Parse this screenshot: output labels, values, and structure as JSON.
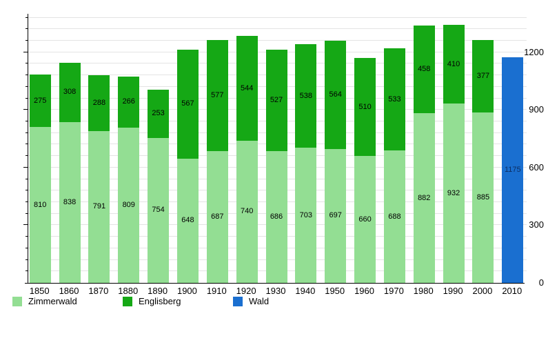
{
  "chart_data": {
    "type": "bar",
    "stacked": true,
    "title": "",
    "xlabel": "",
    "ylabel": "",
    "categories": [
      "1850",
      "1860",
      "1870",
      "1880",
      "1890",
      "1900",
      "1910",
      "1920",
      "1930",
      "1940",
      "1950",
      "1960",
      "1970",
      "1980",
      "1990",
      "2000",
      "2010"
    ],
    "series": [
      {
        "name": "Zimmerwald",
        "color": "#93de93",
        "label_color": "#000000",
        "values": [
          810,
          838,
          791,
          809,
          754,
          648,
          687,
          740,
          686,
          703,
          697,
          660,
          688,
          882,
          932,
          885,
          null
        ]
      },
      {
        "name": "Englisberg",
        "color": "#15a815",
        "label_color": "#000000",
        "values": [
          275,
          308,
          288,
          266,
          253,
          567,
          577,
          544,
          527,
          538,
          564,
          510,
          533,
          458,
          410,
          377,
          null
        ]
      },
      {
        "name": "Wald",
        "color": "#1a6fd0",
        "label_color": "#0c2d62",
        "values": [
          null,
          null,
          null,
          null,
          null,
          null,
          null,
          null,
          null,
          null,
          null,
          null,
          null,
          null,
          null,
          null,
          1175
        ]
      }
    ],
    "ylim": [
      0,
      1400
    ],
    "yticks": [
      0,
      300,
      600,
      900,
      1200
    ],
    "grid_step": 60,
    "grid": true,
    "legend_position": "bottom",
    "axis_color": "#000000",
    "grid_color": "#e3e3e3",
    "background": "#ffffff"
  }
}
